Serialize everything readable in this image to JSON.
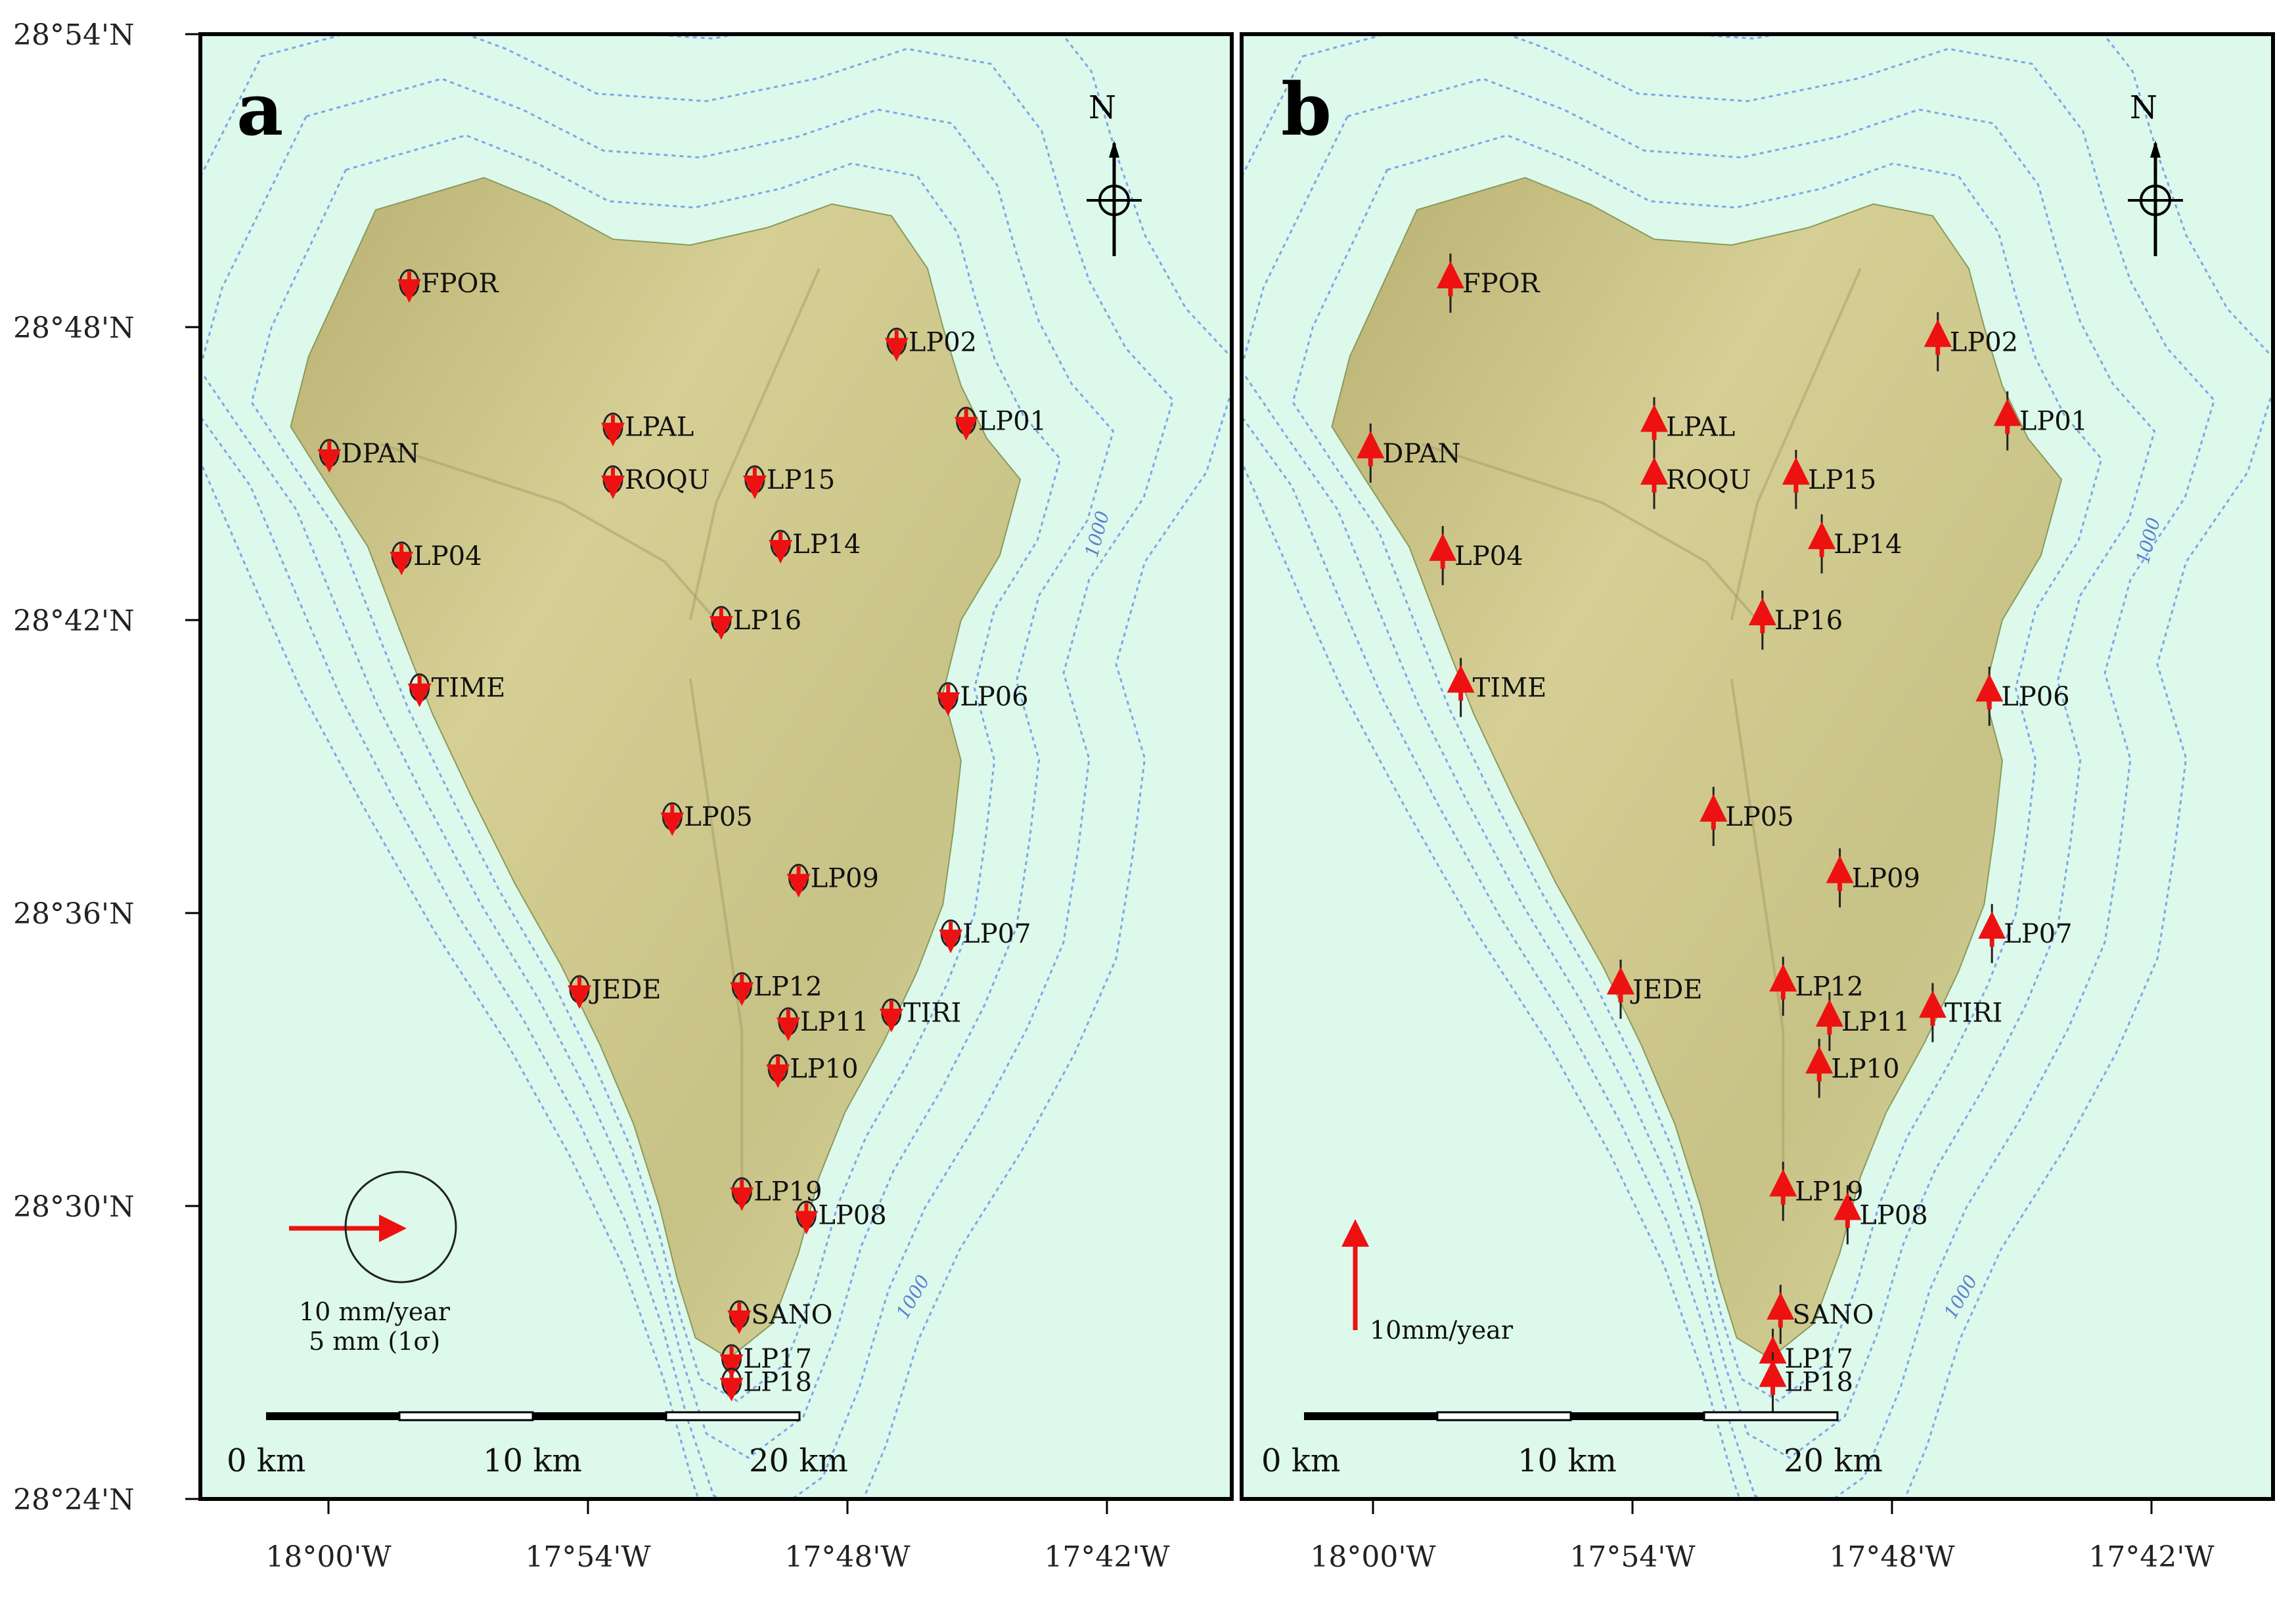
{
  "lat_labels": [
    "28°54'N",
    "28°48'N",
    "28°42'N",
    "28°36'N",
    "28°30'N",
    "28°24'N"
  ],
  "lon_labels": [
    "18°00'W",
    "17°54'W",
    "17°48'W",
    "17°42'W"
  ],
  "contour_label": "1000",
  "north_label": "N",
  "scale_labels": [
    "0 km",
    "10 km",
    "20 km"
  ],
  "colors": {
    "sea": "#dcf9ec",
    "land_low": "#d9d49a",
    "land_mid": "#c9c07c",
    "land_high": "#a8a26a",
    "vector": "#ee1111",
    "ellipse": "#222222",
    "contour": "#7ea6e6"
  },
  "panels": [
    {
      "label": "a",
      "legend": {
        "vector_text": "10 mm/year",
        "sigma_text": "5 mm (1σ)"
      },
      "stations": [
        {
          "name": "FPOR",
          "lon": -17.959,
          "lat": 28.815
        },
        {
          "name": "LP02",
          "lon": -17.77,
          "lat": 28.795
        },
        {
          "name": "LPAL",
          "lon": -17.88,
          "lat": 28.766
        },
        {
          "name": "DPAN",
          "lon": -17.99,
          "lat": 28.757
        },
        {
          "name": "LP15",
          "lon": -17.825,
          "lat": 28.748
        },
        {
          "name": "ROQU",
          "lon": -17.88,
          "lat": 28.748
        },
        {
          "name": "LP01",
          "lon": -17.743,
          "lat": 28.768
        },
        {
          "name": "LP14",
          "lon": -17.815,
          "lat": 28.726
        },
        {
          "name": "LP04",
          "lon": -17.962,
          "lat": 28.722
        },
        {
          "name": "LP16",
          "lon": -17.838,
          "lat": 28.7
        },
        {
          "name": "TIME",
          "lon": -17.955,
          "lat": 28.677
        },
        {
          "name": "LP06",
          "lon": -17.75,
          "lat": 28.674
        },
        {
          "name": "LP05",
          "lon": -17.857,
          "lat": 28.633
        },
        {
          "name": "LP09",
          "lon": -17.808,
          "lat": 28.612
        },
        {
          "name": "LP07",
          "lon": -17.749,
          "lat": 28.593
        },
        {
          "name": "JEDE",
          "lon": -17.893,
          "lat": 28.574
        },
        {
          "name": "LP12",
          "lon": -17.83,
          "lat": 28.575
        },
        {
          "name": "LP11",
          "lon": -17.812,
          "lat": 28.563
        },
        {
          "name": "TIRI",
          "lon": -17.772,
          "lat": 28.566
        },
        {
          "name": "LP10",
          "lon": -17.816,
          "lat": 28.547
        },
        {
          "name": "LP19",
          "lon": -17.83,
          "lat": 28.505
        },
        {
          "name": "LP08",
          "lon": -17.805,
          "lat": 28.497
        },
        {
          "name": "SANO",
          "lon": -17.831,
          "lat": 28.463
        },
        {
          "name": "LP17",
          "lon": -17.834,
          "lat": 28.448
        },
        {
          "name": "LP18",
          "lon": -17.834,
          "lat": 28.44
        }
      ]
    },
    {
      "label": "b",
      "legend": {
        "vector_text": "10mm/year"
      },
      "stations": [
        {
          "name": "FPOR",
          "lon": -17.959,
          "lat": 28.815
        },
        {
          "name": "LP02",
          "lon": -17.77,
          "lat": 28.795
        },
        {
          "name": "LP15",
          "lon": -17.825,
          "lat": 28.748
        },
        {
          "name": "LPAL",
          "lon": -17.88,
          "lat": 28.766
        },
        {
          "name": "DPAN",
          "lon": -17.99,
          "lat": 28.757
        },
        {
          "name": "ROQU",
          "lon": -17.88,
          "lat": 28.748
        },
        {
          "name": "LP01",
          "lon": -17.743,
          "lat": 28.768
        },
        {
          "name": "LP14",
          "lon": -17.815,
          "lat": 28.726
        },
        {
          "name": "LP04",
          "lon": -17.962,
          "lat": 28.722
        },
        {
          "name": "LP16",
          "lon": -17.838,
          "lat": 28.7
        },
        {
          "name": "TIME",
          "lon": -17.955,
          "lat": 28.677
        },
        {
          "name": "LP06",
          "lon": -17.75,
          "lat": 28.674
        },
        {
          "name": "LP05",
          "lon": -17.857,
          "lat": 28.633
        },
        {
          "name": "LP09",
          "lon": -17.808,
          "lat": 28.612
        },
        {
          "name": "LP07",
          "lon": -17.749,
          "lat": 28.593
        },
        {
          "name": "JEDE",
          "lon": -17.893,
          "lat": 28.574
        },
        {
          "name": "LP12",
          "lon": -17.83,
          "lat": 28.575
        },
        {
          "name": "LP11",
          "lon": -17.812,
          "lat": 28.563
        },
        {
          "name": "TIRI",
          "lon": -17.772,
          "lat": 28.566
        },
        {
          "name": "LP10",
          "lon": -17.816,
          "lat": 28.547
        },
        {
          "name": "LP19",
          "lon": -17.83,
          "lat": 28.505
        },
        {
          "name": "LP08",
          "lon": -17.805,
          "lat": 28.497
        },
        {
          "name": "SANO",
          "lon": -17.831,
          "lat": 28.463
        },
        {
          "name": "LP17",
          "lon": -17.834,
          "lat": 28.448
        },
        {
          "name": "LP18",
          "lon": -17.834,
          "lat": 28.44
        }
      ]
    }
  ]
}
